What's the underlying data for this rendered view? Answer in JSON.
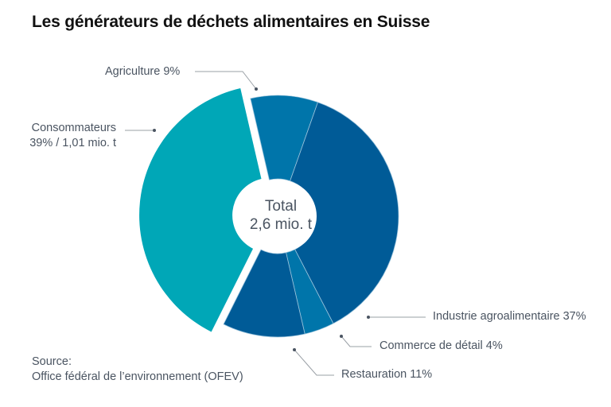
{
  "title": "Les générateurs de déchets alimentaires en Suisse",
  "center": {
    "line1": "Total",
    "line2": "2,6 mio. t"
  },
  "source": {
    "line1": "Source:",
    "line2": "Office fédéral de l’environnement (OFEV)"
  },
  "chart_data": {
    "type": "pie",
    "donut": true,
    "title": "Les générateurs de déchets alimentaires en Suisse",
    "total": "2,6 mio. t",
    "slices": [
      {
        "name": "Agriculture",
        "value": 9,
        "label": "Agriculture 9%",
        "color": "#0075aa"
      },
      {
        "name": "Industrie agroalimentaire",
        "value": 37,
        "label": "Industrie agroalimentaire 37%",
        "color": "#005b97"
      },
      {
        "name": "Commerce de détail",
        "value": 4,
        "label": "Commerce de détail 4%",
        "color": "#0075aa"
      },
      {
        "name": "Restauration",
        "value": 11,
        "label": "Restauration 11%",
        "color": "#005b97"
      },
      {
        "name": "Consommateurs",
        "value": 39,
        "label": "Consommateurs",
        "label2": "39% / 1,01 mio. t",
        "color": "#00a7b7",
        "exploded": true
      }
    ]
  }
}
